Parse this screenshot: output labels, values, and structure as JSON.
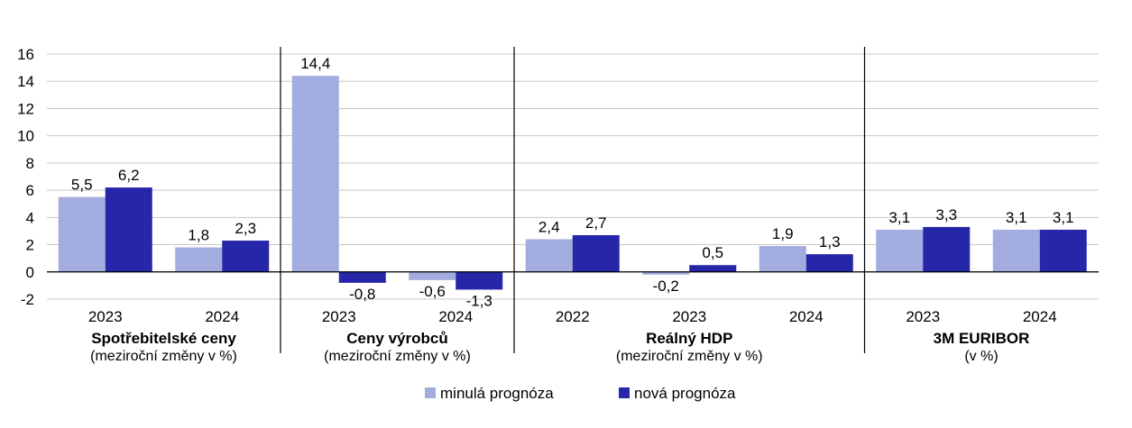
{
  "chart_data": {
    "type": "bar",
    "ylim": [
      -2,
      16
    ],
    "y_ticks": [
      -2,
      0,
      2,
      4,
      6,
      8,
      10,
      12,
      14,
      16
    ],
    "y_tick_labels": [
      "-2",
      "0",
      "2",
      "4",
      "6",
      "8",
      "10",
      "12",
      "14",
      "16"
    ],
    "grid": true,
    "legend_position": "bottom-center",
    "colors": {
      "minula": "#a3acdf",
      "nova": "#2626a8",
      "grid": "#c8c8c8",
      "divider": "#000000"
    },
    "series": [
      {
        "name": "minulá prognóza",
        "color": "#a3acdf"
      },
      {
        "name": "nová prognóza",
        "color": "#2626a8"
      }
    ],
    "groups": [
      {
        "title": "Spotřebitelské ceny",
        "subtitle": "(meziroční změny v %)",
        "categories": [
          {
            "year": "2023",
            "values": [
              5.5,
              6.2
            ],
            "labels": [
              "5,5",
              "6,2"
            ]
          },
          {
            "year": "2024",
            "values": [
              1.8,
              2.3
            ],
            "labels": [
              "1,8",
              "2,3"
            ]
          }
        ]
      },
      {
        "title": "Ceny výrobců",
        "subtitle": "(meziroční změny v %)",
        "categories": [
          {
            "year": "2023",
            "values": [
              14.4,
              -0.8
            ],
            "labels": [
              "14,4",
              "-0,8"
            ]
          },
          {
            "year": "2024",
            "values": [
              -0.6,
              -1.3
            ],
            "labels": [
              "-0,6",
              "-1,3"
            ]
          }
        ]
      },
      {
        "title": "Reálný HDP",
        "subtitle": "(meziroční změny v %)",
        "categories": [
          {
            "year": "2022",
            "values": [
              2.4,
              2.7
            ],
            "labels": [
              "2,4",
              "2,7"
            ]
          },
          {
            "year": "2023",
            "values": [
              -0.2,
              0.5
            ],
            "labels": [
              "-0,2",
              "0,5"
            ]
          },
          {
            "year": "2024",
            "values": [
              1.9,
              1.3
            ],
            "labels": [
              "1,9",
              "1,3"
            ]
          }
        ]
      },
      {
        "title": "3M EURIBOR",
        "subtitle": "(v %)",
        "categories": [
          {
            "year": "2023",
            "values": [
              3.1,
              3.3
            ],
            "labels": [
              "3,1",
              "3,3"
            ]
          },
          {
            "year": "2024",
            "values": [
              3.1,
              3.1
            ],
            "labels": [
              "3,1",
              "3,1"
            ]
          }
        ]
      }
    ]
  }
}
